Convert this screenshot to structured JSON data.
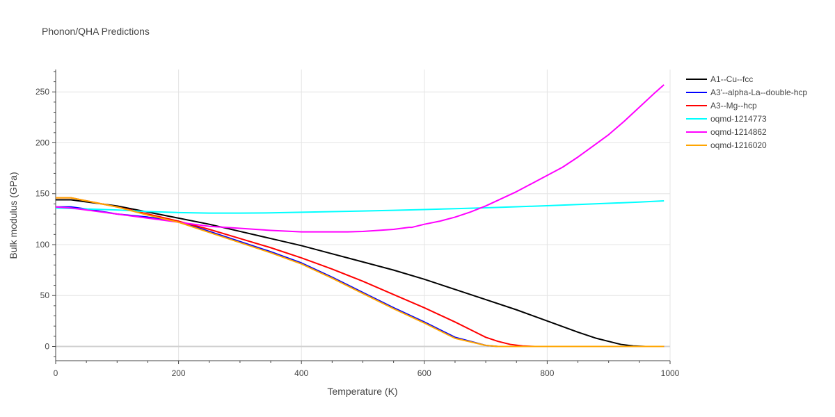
{
  "chart_data": {
    "type": "line",
    "title": "Phonon/QHA Predictions",
    "xlabel": "Temperature (K)",
    "ylabel": "Bulk modulus (GPa)",
    "xlim": [
      0,
      1000
    ],
    "ylim": [
      -14,
      272
    ],
    "x_ticks": [
      0,
      200,
      400,
      600,
      800,
      1000
    ],
    "y_ticks": [
      0,
      50,
      100,
      150,
      200,
      250
    ],
    "grid": true,
    "legend_position": "top-right",
    "series": [
      {
        "name": "A1--Cu--fcc",
        "color": "#000000",
        "x": [
          0,
          25,
          50,
          100,
          150,
          200,
          250,
          300,
          350,
          400,
          450,
          500,
          550,
          600,
          650,
          700,
          750,
          800,
          850,
          880,
          900,
          920,
          940,
          960
        ],
        "y": [
          144,
          144,
          142,
          138,
          132,
          126,
          120,
          113,
          106,
          99,
          91,
          83,
          75,
          66,
          56,
          46,
          36,
          25,
          14,
          8,
          5,
          2,
          0.5,
          0
        ]
      },
      {
        "name": "A3'--alpha-La--double-hcp",
        "color": "#0000ff",
        "x": [
          0,
          25,
          50,
          100,
          150,
          200,
          250,
          300,
          350,
          400,
          450,
          500,
          550,
          600,
          650,
          700,
          720,
          750,
          800,
          850,
          900,
          950,
          990
        ],
        "y": [
          137,
          137,
          135,
          130,
          127,
          123,
          113,
          103,
          93,
          82,
          68,
          53,
          38,
          24,
          9,
          1,
          0,
          0,
          0,
          0,
          0,
          0,
          0
        ]
      },
      {
        "name": "A3--Mg--hcp",
        "color": "#ff0000",
        "x": [
          0,
          25,
          50,
          100,
          150,
          200,
          250,
          300,
          350,
          400,
          450,
          500,
          550,
          600,
          650,
          680,
          700,
          720,
          740,
          760,
          780,
          800,
          850,
          900,
          950,
          990
        ],
        "y": [
          146,
          146,
          143,
          137,
          130,
          123,
          115,
          106,
          97,
          87,
          76,
          64,
          51,
          38,
          24,
          15,
          9,
          5,
          2,
          0.5,
          0,
          0,
          0,
          0,
          0,
          0
        ]
      },
      {
        "name": "oqmd-1214773",
        "color": "#00ffff",
        "x": [
          0,
          50,
          100,
          150,
          200,
          250,
          300,
          350,
          400,
          450,
          500,
          550,
          600,
          650,
          700,
          750,
          800,
          850,
          900,
          950,
          990
        ],
        "y": [
          136,
          135,
          134,
          132.5,
          131.5,
          131,
          131,
          131.2,
          131.8,
          132.4,
          133,
          133.7,
          134.5,
          135.3,
          136.2,
          137.2,
          138.2,
          139.4,
          140.6,
          141.8,
          143
        ]
      },
      {
        "name": "oqmd-1214862",
        "color": "#ff00ff",
        "x": [
          0,
          25,
          50,
          100,
          150,
          200,
          250,
          300,
          350,
          400,
          425,
          450,
          475,
          500,
          525,
          550,
          575,
          580,
          600,
          625,
          650,
          675,
          700,
          725,
          750,
          775,
          800,
          825,
          850,
          875,
          900,
          925,
          950,
          975,
          990
        ],
        "y": [
          137,
          136,
          134,
          130,
          126,
          122,
          118,
          116,
          114,
          112.5,
          112.5,
          112.5,
          112.5,
          113,
          114,
          115,
          117,
          117,
          120,
          123,
          127,
          132,
          138,
          145,
          152,
          160,
          168,
          176,
          186,
          197,
          208,
          221,
          235,
          249,
          257
        ]
      },
      {
        "name": "oqmd-1216020",
        "color": "#ffa500",
        "x": [
          0,
          25,
          50,
          100,
          150,
          200,
          250,
          300,
          350,
          400,
          450,
          500,
          550,
          600,
          650,
          700,
          720,
          750,
          800,
          850,
          900,
          950,
          990
        ],
        "y": [
          146,
          146,
          143,
          137,
          129,
          122,
          112,
          102,
          92,
          81,
          67,
          52,
          37,
          23,
          8,
          1,
          0,
          0,
          0,
          0,
          0,
          0,
          0
        ]
      }
    ]
  }
}
